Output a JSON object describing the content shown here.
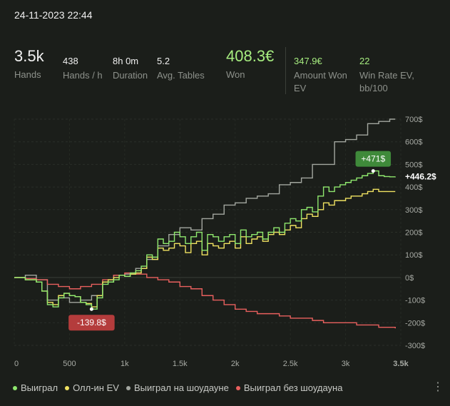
{
  "header": {
    "date": "24-11-2023 22:44"
  },
  "stats": [
    {
      "value": "3.5k",
      "label": "Hands"
    },
    {
      "value": "438",
      "label": "Hands / h"
    },
    {
      "value": "8h 0m",
      "label": "Duration"
    },
    {
      "value": "5.2",
      "label": "Avg. Tables"
    },
    {
      "value": "408.3€",
      "label": "Won"
    },
    {
      "value": "347.9€",
      "label": "Amount Won EV"
    },
    {
      "value": "22",
      "label": "Win Rate EV, bb/100"
    }
  ],
  "more_label": "⋮",
  "chart_data": {
    "type": "line",
    "x_unit": "hands",
    "xlim": [
      0,
      3500
    ],
    "ylim": [
      -300,
      700
    ],
    "x_ticks": [
      {
        "v": 0,
        "label": "0"
      },
      {
        "v": 500,
        "label": "500"
      },
      {
        "v": 1000,
        "label": "1k"
      },
      {
        "v": 1500,
        "label": "1.5k"
      },
      {
        "v": 2000,
        "label": "2k"
      },
      {
        "v": 2500,
        "label": "2.5k"
      },
      {
        "v": 3000,
        "label": "3k"
      },
      {
        "v": 3500,
        "label": "3.5k"
      }
    ],
    "y_ticks": [
      {
        "v": 700,
        "label": "700$"
      },
      {
        "v": 600,
        "label": "600$"
      },
      {
        "v": 500,
        "label": "500$"
      },
      {
        "v": 400,
        "label": "400$"
      },
      {
        "v": 300,
        "label": "300$"
      },
      {
        "v": 200,
        "label": "200$"
      },
      {
        "v": 100,
        "label": "100$"
      },
      {
        "v": 0,
        "label": "0$"
      },
      {
        "v": -100,
        "label": "-100$"
      },
      {
        "v": -200,
        "label": "-200$"
      },
      {
        "v": -300,
        "label": "-300$"
      }
    ],
    "grid": true,
    "series": [
      {
        "name": "Выиграл",
        "color": "#8fe86e",
        "x": [
          0,
          100,
          200,
          250,
          300,
          350,
          400,
          450,
          500,
          550,
          600,
          650,
          700,
          750,
          800,
          850,
          900,
          950,
          1000,
          1050,
          1100,
          1150,
          1200,
          1250,
          1300,
          1350,
          1400,
          1450,
          1500,
          1550,
          1600,
          1650,
          1700,
          1750,
          1800,
          1850,
          1900,
          1950,
          2000,
          2050,
          2100,
          2150,
          2200,
          2250,
          2300,
          2350,
          2400,
          2450,
          2500,
          2550,
          2600,
          2650,
          2700,
          2750,
          2800,
          2850,
          2900,
          2950,
          3000,
          3050,
          3100,
          3150,
          3200,
          3250,
          3300,
          3350,
          3400,
          3450
        ],
        "y": [
          0,
          -10,
          -20,
          -60,
          -120,
          -130,
          -90,
          -70,
          -80,
          -85,
          -110,
          -120,
          -139.8,
          -90,
          -30,
          -20,
          -10,
          10,
          5,
          20,
          30,
          50,
          100,
          90,
          170,
          150,
          160,
          200,
          180,
          150,
          180,
          200,
          120,
          190,
          180,
          160,
          180,
          190,
          150,
          210,
          180,
          190,
          200,
          170,
          200,
          220,
          200,
          240,
          260,
          250,
          300,
          310,
          290,
          360,
          400,
          380,
          400,
          410,
          420,
          430,
          440,
          450,
          460,
          471,
          450,
          446.2,
          445,
          446.2
        ]
      },
      {
        "name": "Олл-ин EV",
        "color": "#f0e261",
        "x": [
          0,
          100,
          200,
          250,
          300,
          350,
          400,
          450,
          500,
          550,
          600,
          650,
          700,
          750,
          800,
          850,
          900,
          950,
          1000,
          1050,
          1100,
          1150,
          1200,
          1250,
          1300,
          1350,
          1400,
          1450,
          1500,
          1550,
          1600,
          1650,
          1700,
          1750,
          1800,
          1850,
          1900,
          1950,
          2000,
          2050,
          2100,
          2150,
          2200,
          2250,
          2300,
          2350,
          2400,
          2450,
          2500,
          2550,
          2600,
          2650,
          2700,
          2750,
          2800,
          2850,
          2900,
          2950,
          3000,
          3050,
          3100,
          3150,
          3200,
          3250,
          3300,
          3350,
          3400,
          3450
        ],
        "y": [
          0,
          -10,
          -20,
          -60,
          -110,
          -120,
          -80,
          -70,
          -80,
          -85,
          -110,
          -115,
          -130,
          -80,
          -20,
          -10,
          0,
          10,
          5,
          15,
          20,
          40,
          90,
          80,
          130,
          120,
          130,
          150,
          140,
          110,
          150,
          160,
          100,
          150,
          140,
          130,
          150,
          160,
          130,
          180,
          150,
          170,
          180,
          160,
          190,
          200,
          190,
          210,
          230,
          220,
          260,
          280,
          270,
          300,
          330,
          320,
          340,
          340,
          350,
          360,
          360,
          370,
          380,
          390,
          380,
          380,
          380,
          380
        ]
      },
      {
        "name": "Выиграл на шоудауне",
        "color": "#a3a7a0",
        "x": [
          0,
          100,
          200,
          300,
          400,
          500,
          600,
          700,
          800,
          900,
          1000,
          1100,
          1200,
          1300,
          1400,
          1500,
          1600,
          1700,
          1800,
          1900,
          2000,
          2100,
          2200,
          2300,
          2400,
          2500,
          2600,
          2700,
          2800,
          2900,
          3000,
          3100,
          3200,
          3300,
          3400,
          3450
        ],
        "y": [
          0,
          10,
          -10,
          -100,
          -90,
          -110,
          -100,
          -80,
          -20,
          10,
          15,
          40,
          80,
          140,
          190,
          220,
          210,
          260,
          280,
          320,
          330,
          350,
          360,
          370,
          410,
          420,
          440,
          500,
          500,
          600,
          610,
          630,
          680,
          690,
          700,
          700
        ]
      },
      {
        "name": "Выиграл без шоудауна",
        "color": "#e9605e",
        "x": [
          0,
          100,
          200,
          300,
          400,
          500,
          600,
          700,
          800,
          900,
          1000,
          1100,
          1200,
          1300,
          1400,
          1500,
          1600,
          1700,
          1800,
          1900,
          2000,
          2100,
          2200,
          2300,
          2400,
          2500,
          2600,
          2700,
          2800,
          2900,
          3000,
          3100,
          3200,
          3300,
          3400,
          3450
        ],
        "y": [
          0,
          -5,
          -10,
          -30,
          -40,
          -50,
          -40,
          -30,
          -10,
          10,
          20,
          15,
          0,
          -10,
          -20,
          -40,
          -50,
          -80,
          -100,
          -120,
          -140,
          -150,
          -160,
          -160,
          -170,
          -180,
          -180,
          -190,
          -200,
          -200,
          -200,
          -210,
          -210,
          -220,
          -220,
          -225
        ]
      }
    ],
    "annotations": [
      {
        "x": 3250,
        "y": 471,
        "label": "+471$",
        "color": "#3f8a3a"
      },
      {
        "x": 700,
        "y": -139.8,
        "label": "-139.8$",
        "color": "#b43c3c"
      }
    ],
    "end_label": "+446.2$"
  }
}
